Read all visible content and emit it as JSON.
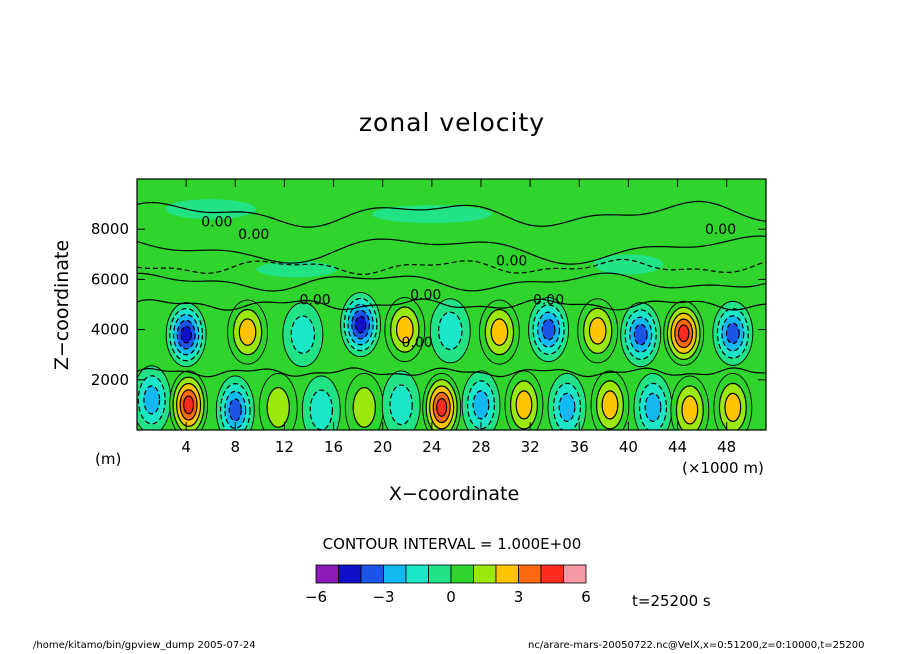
{
  "chart_data": {
    "type": "heatmap",
    "title": "zonal velocity",
    "xlabel": "X−coordinate",
    "ylabel": "Z−coordinate",
    "x_unit": "(×1000 m)",
    "y_unit": "(m)",
    "xlim": [
      0,
      51.2
    ],
    "ylim": [
      0,
      10000
    ],
    "x_ticks": [
      4,
      8,
      12,
      16,
      20,
      24,
      28,
      32,
      36,
      40,
      44,
      48
    ],
    "x_tick_labels": [
      "4",
      "8",
      "12",
      "16",
      "20",
      "24",
      "28",
      "32",
      "36",
      "40",
      "44",
      "48"
    ],
    "y_ticks": [
      2000,
      4000,
      6000,
      8000
    ],
    "y_tick_labels": [
      "2000",
      "4000",
      "6000",
      "8000"
    ],
    "contour_interval": "CONTOUR INTERVAL = 1.000E+00",
    "contour_labels": [
      {
        "text": "0.00",
        "x": 6.5,
        "z": 8100
      },
      {
        "text": "0.00",
        "x": 9.5,
        "z": 7600
      },
      {
        "text": "0.00",
        "x": 30.5,
        "z": 6550
      },
      {
        "text": "0.00",
        "x": 47.5,
        "z": 7800
      },
      {
        "text": "0.00",
        "x": 23.5,
        "z": 5200
      },
      {
        "text": "0.00",
        "x": 14.5,
        "z": 5000
      },
      {
        "text": "0.00",
        "x": 33.5,
        "z": 5000
      },
      {
        "text": "0.00",
        "x": 22.8,
        "z": 3300
      }
    ],
    "time_label": "t=25200 s",
    "colorbar": {
      "levels": [
        -6,
        -5,
        -4,
        -3,
        -2,
        -1,
        0,
        1,
        2,
        3,
        4,
        5,
        6
      ],
      "tick_labels": [
        "−6",
        "−3",
        "0",
        "3",
        "6"
      ],
      "tick_values": [
        -6,
        -3,
        0,
        3,
        6
      ],
      "colors": [
        "#8b1ab8",
        "#1010c8",
        "#1a55e8",
        "#12b8f0",
        "#1ce6c8",
        "#22e286",
        "#2fd42c",
        "#9be80c",
        "#ffc400",
        "#ff6a10",
        "#ff2b1f",
        "#f59aa3"
      ]
    },
    "upper_waves": {
      "x": [
        4,
        9,
        13.5,
        18.2,
        21.8,
        25.5,
        29.5,
        33.5,
        37.5,
        41,
        44.5,
        48.5
      ],
      "z": [
        3800,
        3900,
        3800,
        4200,
        4000,
        3950,
        3900,
        4000,
        3950,
        3800,
        3850,
        3850
      ],
      "value": [
        -4.5,
        2.5,
        -1.5,
        -4.8,
        2.5,
        -1.5,
        3.0,
        -4.0,
        3.0,
        -3.5,
        4.5,
        -4.0
      ]
    },
    "lower_waves": {
      "x": [
        1.2,
        4.2,
        8,
        11.5,
        15,
        18.5,
        21.5,
        24.8,
        28,
        31.5,
        35,
        38.5,
        42,
        45,
        48.5
      ],
      "z": [
        1200,
        1000,
        800,
        900,
        800,
        900,
        1000,
        900,
        1000,
        1000,
        900,
        1000,
        900,
        800,
        900
      ],
      "value": [
        -3.0,
        4.5,
        -3.2,
        1.5,
        -2.0,
        1.5,
        -1.5,
        5.0,
        -2.5,
        2.5,
        -2.5,
        3.0,
        -3.0,
        2.5,
        3.0
      ]
    }
  },
  "footer": {
    "left": "/home/kitamo/bin/gpview_dump   2005-07-24",
    "right": "nc/arare-mars-20050722.nc@VelX,x=0:51200,z=0:10000,t=25200"
  }
}
